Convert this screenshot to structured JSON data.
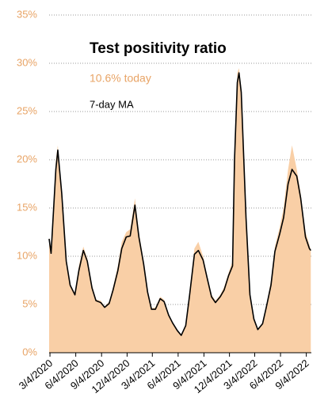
{
  "chart_data": {
    "type": "line",
    "title": "Test positivity ratio",
    "annotation": "10.6% today",
    "annotation_color": "#e8a466",
    "x": [
      "2020-03-01",
      "2020-03-08",
      "2020-03-25",
      "2020-04-01",
      "2020-04-15",
      "2020-05-01",
      "2020-05-15",
      "2020-06-01",
      "2020-06-15",
      "2020-07-01",
      "2020-07-15",
      "2020-08-01",
      "2020-08-15",
      "2020-09-01",
      "2020-09-15",
      "2020-10-01",
      "2020-10-15",
      "2020-11-01",
      "2020-11-15",
      "2020-12-01",
      "2020-12-15",
      "2021-01-01",
      "2021-01-15",
      "2021-02-01",
      "2021-02-15",
      "2021-03-01",
      "2021-03-15",
      "2021-04-01",
      "2021-04-15",
      "2021-05-01",
      "2021-05-15",
      "2021-06-01",
      "2021-06-15",
      "2021-07-01",
      "2021-07-15",
      "2021-08-01",
      "2021-08-15",
      "2021-09-01",
      "2021-09-15",
      "2021-10-01",
      "2021-10-15",
      "2021-11-01",
      "2021-11-15",
      "2021-12-01",
      "2021-12-15",
      "2021-12-22",
      "2022-01-01",
      "2022-01-07",
      "2022-01-15",
      "2022-02-01",
      "2022-02-15",
      "2022-03-01",
      "2022-03-15",
      "2022-04-01",
      "2022-04-15",
      "2022-05-01",
      "2022-05-15",
      "2022-06-01",
      "2022-06-15",
      "2022-07-01",
      "2022-07-15",
      "2022-08-01",
      "2022-08-15",
      "2022-09-01",
      "2022-09-15",
      "2022-09-20"
    ],
    "series": [
      {
        "color": "#f9cfa6",
        "values": [
          12,
          10,
          20,
          21.5,
          16,
          9,
          7,
          6.2,
          9,
          11,
          9.8,
          7,
          5.5,
          5.4,
          4.8,
          5.3,
          6.8,
          9,
          11.5,
          12.5,
          12.8,
          16,
          12.5,
          9.5,
          6.5,
          4.6,
          4.7,
          5.8,
          5.5,
          4,
          3.2,
          2.4,
          1.9,
          3,
          6.5,
          10.8,
          11.5,
          10,
          8,
          6,
          5.4,
          6,
          6.8,
          8.3,
          9.5,
          21,
          29,
          29.5,
          27.5,
          14.5,
          6.2,
          3.6,
          2.5,
          3.1,
          5,
          7.5,
          11,
          13,
          15,
          19,
          21.5,
          19,
          16.5,
          12.5,
          11.2,
          10.6
        ]
      },
      {
        "name": "7-day MA",
        "color": "#000000",
        "values": [
          11.8,
          10.3,
          19,
          21,
          16.5,
          9.5,
          7,
          6,
          8.5,
          10.6,
          9.5,
          6.7,
          5.4,
          5.2,
          4.7,
          5.1,
          6.5,
          8.5,
          10.8,
          12,
          12.1,
          15.3,
          12,
          9.2,
          6.3,
          4.5,
          4.5,
          5.6,
          5.3,
          3.9,
          3.1,
          2.3,
          1.8,
          2.8,
          6,
          10.2,
          10.6,
          9.6,
          7.8,
          5.8,
          5.2,
          5.8,
          6.5,
          8,
          9,
          20,
          28,
          29,
          27,
          14,
          6,
          3.5,
          2.4,
          3,
          4.8,
          7,
          10.5,
          12.3,
          14,
          17.5,
          19,
          18.3,
          16,
          12,
          10.8,
          10.6
        ]
      }
    ],
    "xlim": [
      "2020-03-01",
      "2022-09-22"
    ],
    "xticks": [
      {
        "value": "2020-03-04",
        "label": "3/4/2020"
      },
      {
        "value": "2020-06-04",
        "label": "6/4/2020"
      },
      {
        "value": "2020-09-04",
        "label": "9/4/2020"
      },
      {
        "value": "2020-12-04",
        "label": "12/4/2020"
      },
      {
        "value": "2021-03-04",
        "label": "3/4/2021"
      },
      {
        "value": "2021-06-04",
        "label": "6/4/2021"
      },
      {
        "value": "2021-09-04",
        "label": "9/4/2021"
      },
      {
        "value": "2021-12-04",
        "label": "12/4/2021"
      },
      {
        "value": "2022-03-04",
        "label": "3/4/2022"
      },
      {
        "value": "2022-06-04",
        "label": "6/4/2022"
      },
      {
        "value": "2022-09-04",
        "label": "9/4/2022"
      }
    ],
    "ylim": [
      0,
      35
    ],
    "yticks": [
      {
        "value": 0,
        "label": "0%"
      },
      {
        "value": 5,
        "label": "5%"
      },
      {
        "value": 10,
        "label": "10%"
      },
      {
        "value": 15,
        "label": "15%"
      },
      {
        "value": 20,
        "label": "20%"
      },
      {
        "value": 25,
        "label": "25%"
      },
      {
        "value": 30,
        "label": "30%"
      },
      {
        "value": 35,
        "label": "35%"
      }
    ],
    "ytick_color": "#e8a466",
    "grid": true
  }
}
